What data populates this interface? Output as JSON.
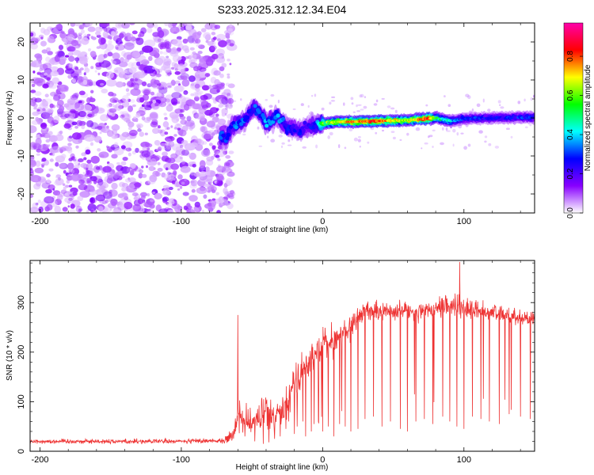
{
  "title": "S233.2025.312.12.34.E04",
  "chart_data": [
    {
      "type": "heatmap",
      "name": "spectrogram",
      "xlabel": "Height of straight line (km)",
      "ylabel": "Frequency (Hz)",
      "xlim": [
        -207,
        150
      ],
      "ylim": [
        -25,
        25
      ],
      "xticks": [
        -200,
        -100,
        0,
        100
      ],
      "yticks": [
        -20,
        -10,
        0,
        10,
        20
      ],
      "colorbar": {
        "label": "Normalized spectral amplitude",
        "range": [
          0,
          0.97
        ],
        "ticks": [
          "0.0",
          "0.2",
          "0.4",
          "0.6",
          "0.8"
        ],
        "tick_values": [
          0.0,
          0.2,
          0.4,
          0.6,
          0.8
        ],
        "colors": [
          "#ffffff",
          "#8800ff",
          "#0000ff",
          "#00ffff",
          "#00ff00",
          "#ffff00",
          "#ff0000",
          "#ff00aa"
        ]
      },
      "ridge": {
        "x": [
          -72,
          -68,
          -64,
          -60,
          -56,
          -52,
          -48,
          -44,
          -40,
          -36,
          -32,
          -28,
          -24,
          -20,
          -16,
          -12,
          -8,
          -4,
          0,
          10,
          20,
          40,
          60,
          75,
          80,
          90,
          95,
          100,
          120,
          150
        ],
        "freq": [
          -5,
          -5.5,
          -2,
          -1.5,
          -1,
          1,
          3,
          1,
          -1.5,
          -0.5,
          0.5,
          -1.5,
          -2.5,
          -3,
          -3.5,
          -2.5,
          -2,
          -2,
          -1.5,
          -1,
          -1,
          -0.8,
          -0.6,
          -0.2,
          0,
          -0.8,
          -0.5,
          -0.2,
          0,
          0.2
        ],
        "amplitude": [
          0.35,
          0.3,
          0.25,
          0.35,
          0.3,
          0.25,
          0.3,
          0.3,
          0.35,
          0.3,
          0.35,
          0.3,
          0.3,
          0.25,
          0.25,
          0.2,
          0.25,
          0.3,
          0.55,
          0.65,
          0.75,
          0.8,
          0.6,
          0.85,
          0.5,
          0.4,
          0.3,
          0.3,
          0.25,
          0.3
        ]
      },
      "noise_region_x": [
        -207,
        -70
      ],
      "noise_amplitude_max": 0.15
    },
    {
      "type": "line",
      "name": "snr",
      "xlabel": "Height of straight line (km)",
      "ylabel": "SNR (10 * v/v)",
      "xlim": [
        -207,
        150
      ],
      "ylim": [
        0,
        385
      ],
      "xticks": [
        -200,
        -100,
        0,
        100
      ],
      "yticks": [
        0,
        100,
        200,
        300
      ],
      "color": "#ee3333",
      "envelope": {
        "x": [
          -207,
          -100,
          -70,
          -65,
          -60,
          -55,
          -50,
          -45,
          -40,
          -35,
          -30,
          -25,
          -20,
          -15,
          -10,
          -5,
          0,
          10,
          20,
          30,
          40,
          50,
          60,
          70,
          80,
          90,
          100,
          110,
          120,
          130,
          140,
          150
        ],
        "mean": [
          20,
          20,
          22,
          28,
          60,
          65,
          55,
          70,
          80,
          65,
          90,
          100,
          140,
          165,
          175,
          195,
          215,
          225,
          255,
          285,
          280,
          285,
          285,
          280,
          285,
          295,
          290,
          285,
          280,
          275,
          270,
          265
        ],
        "spread": [
          8,
          8,
          10,
          20,
          50,
          60,
          45,
          55,
          55,
          50,
          60,
          55,
          60,
          55,
          55,
          55,
          55,
          45,
          45,
          35,
          30,
          30,
          30,
          30,
          30,
          40,
          40,
          30,
          25,
          25,
          25,
          25
        ]
      },
      "spikes": {
        "x": [
          -60,
          -55,
          -48,
          -42,
          -38,
          -34,
          -30,
          -26,
          -24,
          -20,
          -18,
          -14,
          -12,
          -8,
          -6,
          -3,
          0,
          4,
          8,
          12,
          16,
          20,
          25,
          30,
          36,
          42,
          48,
          55,
          60,
          66,
          72,
          78,
          85,
          90,
          95,
          100,
          106,
          112,
          118,
          125,
          132,
          140,
          147
        ],
        "y": [
          275,
          30,
          20,
          15,
          18,
          25,
          30,
          45,
          60,
          35,
          50,
          60,
          30,
          40,
          55,
          60,
          40,
          50,
          30,
          55,
          50,
          40,
          45,
          65,
          70,
          50,
          60,
          45,
          40,
          60,
          65,
          55,
          70,
          60,
          50,
          45,
          70,
          65,
          60,
          55,
          75,
          70,
          65
        ]
      },
      "peak": {
        "x": 97,
        "y": 382
      }
    }
  ]
}
